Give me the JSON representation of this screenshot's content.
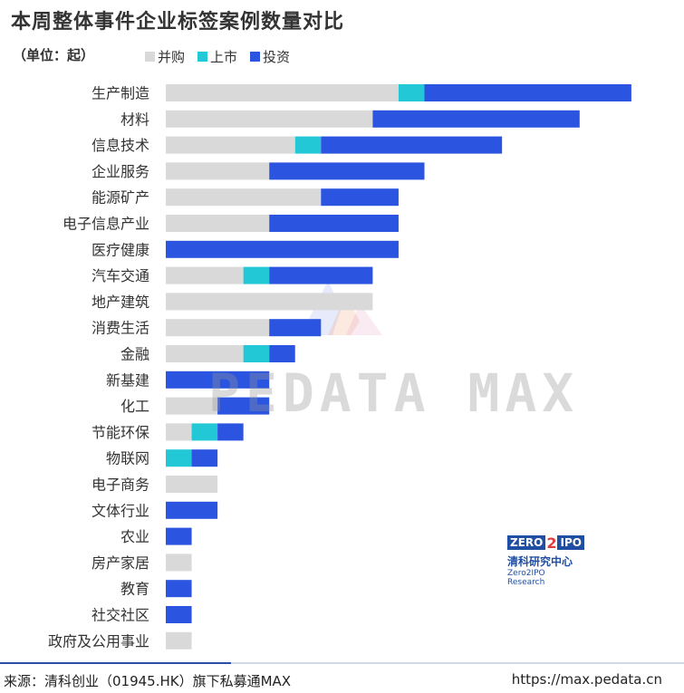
{
  "header": {
    "title": "本周整体事件企业标签案例数量对比",
    "unit": "（单位：起）"
  },
  "colors": {
    "merger": "#d9d9d9",
    "ipo": "#22c8d6",
    "investment": "#2b55e0"
  },
  "chart_data": {
    "type": "bar",
    "orientation": "horizontal",
    "stacked": true,
    "title": "本周整体事件企业标签案例数量对比",
    "unit": "（单位：起）",
    "categories": [
      "生产制造",
      "材料",
      "信息技术",
      "企业服务",
      "能源矿产",
      "电子信息产业",
      "医疗健康",
      "汽车交通",
      "地产建筑",
      "消费生活",
      "金融",
      "新基建",
      "化工",
      "节能环保",
      "物联网",
      "电子商务",
      "文体行业",
      "农业",
      "房产家居",
      "教育",
      "社交社区",
      "政府及公用事业"
    ],
    "series": [
      {
        "name": "并购",
        "key": "merger",
        "values": [
          9,
          8,
          5,
          4,
          6,
          4,
          0,
          3,
          8,
          4,
          3,
          0,
          2,
          1,
          0,
          2,
          0,
          0,
          1,
          0,
          0,
          1
        ]
      },
      {
        "name": "上市",
        "key": "ipo",
        "values": [
          1,
          0,
          1,
          0,
          0,
          0,
          0,
          1,
          0,
          0,
          1,
          0,
          0,
          1,
          1,
          0,
          0,
          0,
          0,
          0,
          0,
          0
        ]
      },
      {
        "name": "投资",
        "key": "investment",
        "values": [
          8,
          8,
          7,
          6,
          3,
          5,
          9,
          4,
          0,
          2,
          1,
          4,
          2,
          1,
          1,
          0,
          2,
          1,
          0,
          1,
          1,
          0
        ]
      }
    ],
    "legend_position": "top",
    "grid": false
  },
  "footer": {
    "source": "来源：清科创业（01945.HK）旗下私募通MAX",
    "url": "https://max.pedata.cn"
  },
  "watermark": {
    "text": "PEDATA MAX"
  },
  "logo": {
    "brand_left": "ZERO",
    "brand_mid": "2",
    "brand_right": "IPO",
    "name_cn": "清科研究中心",
    "name_en": "Zero2IPO Research"
  }
}
